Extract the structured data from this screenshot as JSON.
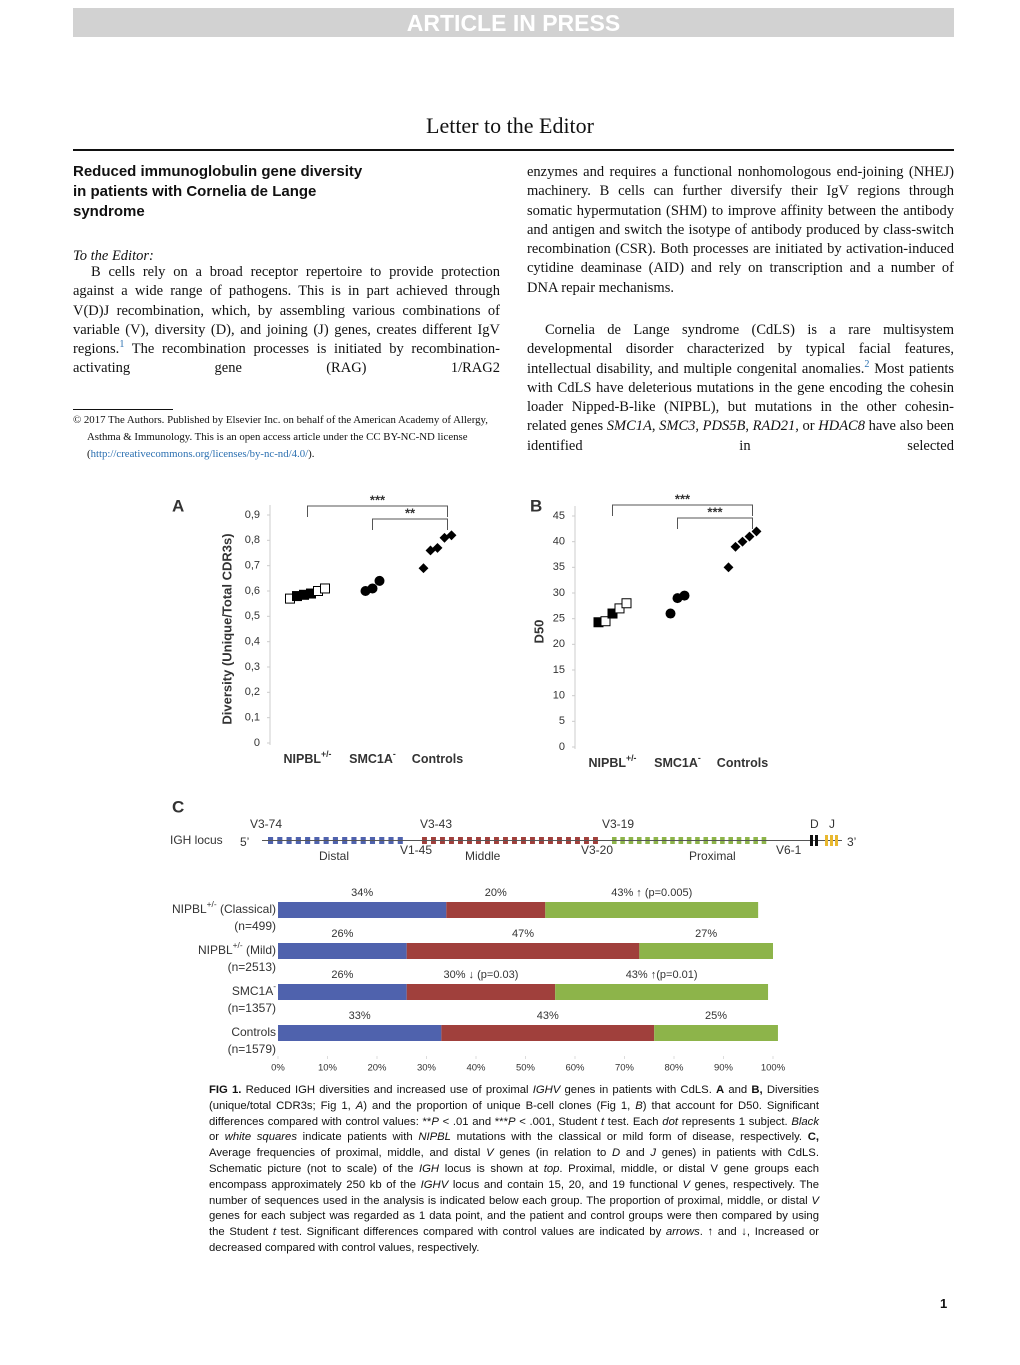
{
  "header": {
    "banner": "ARTICLE IN PRESS",
    "section": "Letter to the Editor"
  },
  "article": {
    "title": "Reduced immunoglobulin gene diversity in patients with Cornelia de Lange syndrome",
    "salutation": "To the Editor:",
    "left_paragraphs": [
      [
        {
          "t": "B cells rely on a broad receptor repertoire to provide protection against a wide range of pathogens. This is in part achieved through V(D)J recombination, which, by assembling various combinations of variable (V), diversity (D), and joining (J) genes, creates different IgV regions."
        },
        {
          "t": "1",
          "sup": true,
          "link": true
        },
        {
          "t": " The recombination processes is initiated by recombination-activating gene (RAG) 1/RAG2"
        }
      ]
    ],
    "right_paragraphs": [
      [
        {
          "t": "enzymes and requires a functional nonhomologous end-joining (NHEJ) machinery. B cells can further diversify their IgV regions through somatic hypermutation (SHM) to improve affinity between the antibody and antigen and switch the isotype of antibody produced by class-switch recombination (CSR). Both processes are initiated by activation-induced cytidine deaminase (AID) and rely on transcription and a number of DNA repair mechanisms."
        }
      ],
      [
        {
          "t": "Cornelia de Lange syndrome (CdLS) is a rare multisystem developmental disorder characterized by typical facial features, intellectual disability, and multiple congenital anomalies."
        },
        {
          "t": "2",
          "sup": true,
          "link": true
        },
        {
          "t": " Most patients with CdLS have deleterious mutations in the gene encoding the cohesin loader Nipped-B-like (NIPBL), but mutations in the other cohesin-related genes "
        },
        {
          "t": "SMC1A",
          "i": true
        },
        {
          "t": ", "
        },
        {
          "t": "SMC3",
          "i": true
        },
        {
          "t": ", "
        },
        {
          "t": "PDS5B",
          "i": true
        },
        {
          "t": ", "
        },
        {
          "t": "RAD21",
          "i": true
        },
        {
          "t": ", or "
        },
        {
          "t": "HDAC8",
          "i": true
        },
        {
          "t": " have also been identified in selected"
        }
      ]
    ]
  },
  "footnote": [
    {
      "t": "© 2017 The Authors. Published by Elsevier Inc. on behalf of the American Academy of Allergy, Asthma & Immunology. This is an open access article under the CC BY-NC-ND license ("
    },
    {
      "t": "http://creativecommons.org/licenses/by-nc-nd/4.0/",
      "link": true
    },
    {
      "t": ")."
    }
  ],
  "chart_data": [
    {
      "type": "strip",
      "panel": "A",
      "ylabel": "Diversity (Unique/Total CDR3s)",
      "categories": [
        [
          {
            "t": "NIPBL"
          },
          {
            "t": "+/-",
            "sup": true
          }
        ],
        [
          {
            "t": "SMC1A"
          },
          {
            "t": "-",
            "sup": true
          }
        ],
        [
          {
            "t": "Controls"
          }
        ]
      ],
      "points": [
        [
          {
            "value": 0.57,
            "marker": "open-square"
          },
          {
            "value": 0.58,
            "marker": "square"
          },
          {
            "value": 0.585,
            "marker": "square"
          },
          {
            "value": 0.59,
            "marker": "square"
          },
          {
            "value": 0.6,
            "marker": "open-square"
          },
          {
            "value": 0.61,
            "marker": "open-square"
          }
        ],
        [
          {
            "value": 0.6,
            "marker": "circle"
          },
          {
            "value": 0.61,
            "marker": "circle"
          },
          {
            "value": 0.64,
            "marker": "circle"
          }
        ],
        [
          {
            "value": 0.69,
            "marker": "diamond"
          },
          {
            "value": 0.76,
            "marker": "diamond"
          },
          {
            "value": 0.77,
            "marker": "diamond"
          },
          {
            "value": 0.81,
            "marker": "diamond"
          },
          {
            "value": 0.82,
            "marker": "diamond"
          }
        ]
      ],
      "ylim": [
        0,
        0.9
      ],
      "yticks": [
        0,
        {
          "value": 0.1,
          "label": "0,1"
        },
        {
          "value": 0.2,
          "label": "0,2"
        },
        {
          "value": 0.3,
          "label": "0,3"
        },
        {
          "value": 0.4,
          "label": "0,4"
        },
        {
          "value": 0.5,
          "label": "0,5"
        },
        {
          "value": 0.6,
          "label": "0,6"
        },
        {
          "value": 0.7,
          "label": "0,7"
        },
        {
          "value": 0.8,
          "label": "0,8"
        },
        {
          "value": 0.9,
          "label": "0,9"
        }
      ],
      "annotations": [
        {
          "text": "***",
          "from": 0,
          "to": 2
        },
        {
          "text": "**",
          "from": 1,
          "to": 2
        }
      ]
    },
    {
      "type": "strip",
      "panel": "B",
      "ylabel": "D50",
      "categories": [
        [
          {
            "t": "NIPBL"
          },
          {
            "t": "+/-",
            "sup": true
          }
        ],
        [
          {
            "t": "SMC1A"
          },
          {
            "t": "-",
            "sup": true
          }
        ],
        [
          {
            "t": "Controls"
          }
        ]
      ],
      "points": [
        [
          {
            "value": 24.3,
            "marker": "square"
          },
          {
            "value": 24.5,
            "marker": "open-square"
          },
          {
            "value": 26,
            "marker": "square"
          },
          {
            "value": 27,
            "marker": "open-square"
          },
          {
            "value": 28,
            "marker": "open-square"
          }
        ],
        [
          {
            "value": 26,
            "marker": "circle"
          },
          {
            "value": 29,
            "marker": "circle"
          },
          {
            "value": 29.5,
            "marker": "circle"
          }
        ],
        [
          {
            "value": 35,
            "marker": "diamond"
          },
          {
            "value": 39,
            "marker": "diamond"
          },
          {
            "value": 40,
            "marker": "diamond"
          },
          {
            "value": 41,
            "marker": "diamond"
          },
          {
            "value": 42,
            "marker": "diamond"
          }
        ]
      ],
      "ylim": [
        0,
        45
      ],
      "yticks": [
        0,
        5,
        10,
        15,
        20,
        25,
        30,
        35,
        40,
        45
      ],
      "annotations": [
        {
          "text": "***",
          "from": 0,
          "to": 2
        },
        {
          "text": "***",
          "from": 1,
          "to": 2
        }
      ]
    },
    {
      "type": "hbar-stacked",
      "panel": "C",
      "categories": [
        [
          {
            "t": "NIPBL"
          },
          {
            "t": "+/-",
            "sup": true
          },
          {
            "t": " (Classical)"
          }
        ],
        [
          {
            "t": "NIPBL"
          },
          {
            "t": "+/-",
            "sup": true
          },
          {
            "t": " (Mild)"
          }
        ],
        [
          {
            "t": "SMC1A"
          },
          {
            "t": "-",
            "sup": true
          }
        ],
        [
          {
            "t": "Controls"
          }
        ]
      ],
      "category_notes": [
        "(n=499)",
        "(n=2513)",
        "(n=1357)",
        "(n=1579)"
      ],
      "series": [
        {
          "name": "Distal",
          "color": "#4f62ad",
          "values": [
            34,
            26,
            26,
            33
          ],
          "value_labels": [
            "34%",
            "26%",
            "26%",
            "33%"
          ]
        },
        {
          "name": "Middle",
          "color": "#a0403c",
          "values": [
            20,
            47,
            30,
            43
          ],
          "value_labels": [
            "20%",
            "47%",
            "30%  ↓ (p=0.03)",
            "43%"
          ]
        },
        {
          "name": "Proximal",
          "color": "#8db44a",
          "values": [
            43,
            27,
            43,
            25
          ],
          "value_labels": [
            "43%  ↑ (p=0.005)",
            "27%",
            "43% ↑(p=0.01)",
            "25%"
          ]
        }
      ],
      "xlim": [
        0,
        100
      ],
      "xticks": [
        {
          "value": 0,
          "label": "0%"
        },
        {
          "value": 10,
          "label": "10%"
        },
        {
          "value": 20,
          "label": "20%"
        },
        {
          "value": 30,
          "label": "30%"
        },
        {
          "value": 40,
          "label": "40%"
        },
        {
          "value": 50,
          "label": "50%"
        },
        {
          "value": 60,
          "label": "60%"
        },
        {
          "value": 70,
          "label": "70%"
        },
        {
          "value": 80,
          "label": "80%"
        },
        {
          "value": 90,
          "label": "90%"
        },
        {
          "value": 100,
          "label": "100%"
        }
      ]
    }
  ],
  "locus": {
    "label": "IGH locus",
    "five": "5’",
    "three": "3’",
    "genes": [
      "V3-74",
      "V3-43",
      "V3-19",
      "V1-45",
      "V3-20",
      "V6-1"
    ],
    "d": "D",
    "j": "J"
  },
  "caption": [
    {
      "t": "FIG 1.",
      "b": true
    },
    {
      "t": " Reduced IGH diversities and increased use of proximal "
    },
    {
      "t": "IGHV",
      "i": true
    },
    {
      "t": " genes in patients with CdLS. "
    },
    {
      "t": "A",
      "b": true
    },
    {
      "t": " and "
    },
    {
      "t": "B,",
      "b": true
    },
    {
      "t": " Diversities (unique/total CDR3s; Fig 1, "
    },
    {
      "t": "A",
      "i": true
    },
    {
      "t": ") and the proportion of unique B-cell clones (Fig 1, "
    },
    {
      "t": "B",
      "i": true
    },
    {
      "t": ") that account for D50. Significant differences compared with control values: **"
    },
    {
      "t": "P",
      "i": true
    },
    {
      "t": " < .01 and ***"
    },
    {
      "t": "P",
      "i": true
    },
    {
      "t": " < .001, Student "
    },
    {
      "t": "t",
      "i": true
    },
    {
      "t": " test. Each "
    },
    {
      "t": "dot",
      "i": true
    },
    {
      "t": " represents 1 subject. "
    },
    {
      "t": "Black",
      "i": true
    },
    {
      "t": " or "
    },
    {
      "t": "white squares",
      "i": true
    },
    {
      "t": " indicate patients with "
    },
    {
      "t": "NIPBL",
      "i": true
    },
    {
      "t": " mutations with the classical or mild form of disease, respectively. "
    },
    {
      "t": "C,",
      "b": true
    },
    {
      "t": " Average frequencies of proximal, middle, and distal "
    },
    {
      "t": "V",
      "i": true
    },
    {
      "t": " genes (in relation to "
    },
    {
      "t": "D",
      "i": true
    },
    {
      "t": " and "
    },
    {
      "t": "J",
      "i": true
    },
    {
      "t": " genes) in patients with CdLS. Schematic picture (not to scale) of the "
    },
    {
      "t": "IGH",
      "i": true
    },
    {
      "t": " locus is shown at "
    },
    {
      "t": "top",
      "i": true
    },
    {
      "t": ". Proximal, middle, or distal V gene groups each encompass approximately 250 kb of the "
    },
    {
      "t": "IGHV",
      "i": true
    },
    {
      "t": " locus and contain 15, 20, and 19 functional "
    },
    {
      "t": "V",
      "i": true
    },
    {
      "t": " genes, respectively. The number of sequences used in the analysis is indicated below each group. The proportion of proximal, middle, or distal "
    },
    {
      "t": "V",
      "i": true
    },
    {
      "t": " genes for each subject was regarded as 1 data point, and the patient and control groups were then compared by using the Student "
    },
    {
      "t": "t",
      "i": true
    },
    {
      "t": " test. Significant differences compared with control values are indicated by "
    },
    {
      "t": "arrows",
      "i": true
    },
    {
      "t": ". ↑ and ↓, Increased or decreased compared with control values, respectively."
    }
  ],
  "page_number": "1"
}
